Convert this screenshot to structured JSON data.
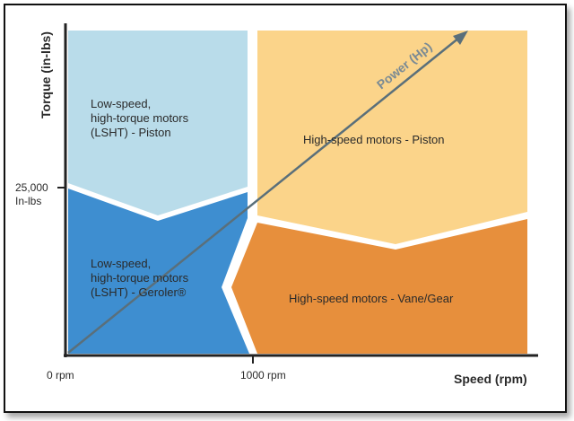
{
  "axes": {
    "y_title": "Torque (in-lbs)",
    "x_title": "Speed (rpm)",
    "y_tick": "25,000\nIn-lbs",
    "x_tick_origin": "0 rpm",
    "x_tick_mid": "1000 rpm"
  },
  "arrow_label": "Power (Hp)",
  "regions": {
    "lsht_piston": "Low-speed,\nhigh-torque motors\n(LSHT) - Piston",
    "lsht_geroler": "Low-speed,\nhigh-torque motors\n(LSHT) - Geroler®",
    "hs_piston": "High-speed motors  - Piston",
    "hs_vane": "High-speed motors  - Vane/Gear"
  },
  "colors": {
    "light_blue": "#b9dcea",
    "mid_blue": "#3e8ed0",
    "light_orange": "#fbd48a",
    "dark_orange": "#e78f3c",
    "arrow": "#5a6f7a"
  }
}
